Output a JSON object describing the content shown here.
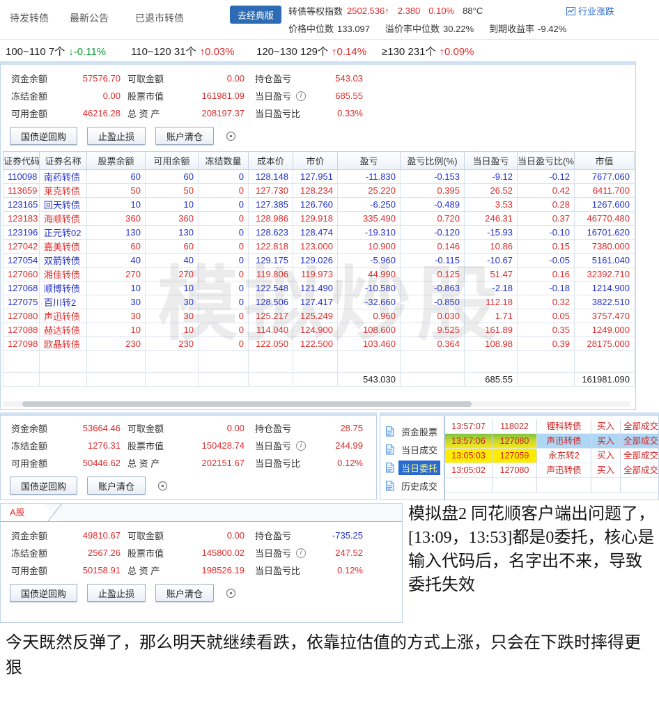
{
  "top_nav": {
    "tabs": [
      {
        "label": "待发转债"
      },
      {
        "label": "最新公告"
      },
      {
        "label": "已退市转债"
      }
    ],
    "classic_button": "去经典版",
    "index_label": "转债等权指数",
    "index_value": "2502.536",
    "index_arrow": "↑",
    "index_change": "2.380",
    "index_change_pct": "0.10%",
    "index_temp": "88°C",
    "industry_link": "行业涨跌",
    "stats_line2": [
      {
        "label": "价格中位数",
        "value": "133.097"
      },
      {
        "label": "溢价率中位数",
        "value": "30.22%"
      },
      {
        "label": "到期收益率",
        "value": "-9.42%"
      }
    ]
  },
  "range_stats": [
    {
      "label": "100~110 7个",
      "change": "↓-0.11%",
      "tone": "green"
    },
    {
      "label": "110~120 31个",
      "change": "↑0.03%",
      "tone": "red"
    },
    {
      "label": "120~130 129个",
      "change": "↑0.14%",
      "tone": "red"
    },
    {
      "label": "≥130 231个",
      "change": "↑0.09%",
      "tone": "red"
    }
  ],
  "account1": {
    "rows": [
      [
        {
          "label": "资金余额",
          "value": "57576.70",
          "tone": "red"
        },
        {
          "label": "可取金额",
          "value": "0.00",
          "tone": "red"
        },
        {
          "label": "持仓盈亏",
          "value": "543.03",
          "tone": "red"
        }
      ],
      [
        {
          "label": "冻结金额",
          "value": "0.00",
          "tone": "red"
        },
        {
          "label": "股票市值",
          "value": "161981.09",
          "tone": "red"
        },
        {
          "label": "当日盈亏",
          "info": true,
          "value": "685.55",
          "tone": "red"
        }
      ],
      [
        {
          "label": "可用金额",
          "value": "46216.28",
          "tone": "red"
        },
        {
          "label": "总 资 产",
          "value": "208197.37",
          "tone": "red"
        },
        {
          "label": "当日盈亏比",
          "value": "0.33%",
          "tone": "red"
        }
      ]
    ],
    "buttons": [
      "国债逆回购",
      "止盈止损",
      "账户清仓"
    ]
  },
  "positions": {
    "columns": [
      "证券代码",
      "证券名称",
      "股票余额",
      "可用余额",
      "冻结数量",
      "成本价",
      "市价",
      "盈亏",
      "盈亏比例(%)",
      "当日盈亏",
      "当日盈亏比(%)",
      "市值"
    ],
    "watermark": "模拟炒股",
    "rows": [
      {
        "code": "110098",
        "name": "南药转债",
        "bal": "60",
        "avail": "60",
        "frozen": "0",
        "cost": "128.148",
        "price": "127.951",
        "pl": "-11.830",
        "pl_pct": "-0.153",
        "day_pl": "-9.12",
        "day_pct": "-0.12",
        "mv": "7677.060",
        "base": "blue",
        "day": "blue"
      },
      {
        "code": "113659",
        "name": "莱克转债",
        "bal": "50",
        "avail": "50",
        "frozen": "0",
        "cost": "127.730",
        "price": "128.234",
        "pl": "25.220",
        "pl_pct": "0.395",
        "day_pl": "26.52",
        "day_pct": "0.42",
        "mv": "6411.700",
        "base": "red",
        "day": "red"
      },
      {
        "code": "123165",
        "name": "回天转债",
        "bal": "10",
        "avail": "10",
        "frozen": "0",
        "cost": "127.385",
        "price": "126.760",
        "pl": "-6.250",
        "pl_pct": "-0.489",
        "day_pl": "3.53",
        "day_pct": "0.28",
        "mv": "1267.600",
        "base": "blue",
        "day": "red"
      },
      {
        "code": "123183",
        "name": "海顺转债",
        "bal": "360",
        "avail": "360",
        "frozen": "0",
        "cost": "128.986",
        "price": "129.918",
        "pl": "335.490",
        "pl_pct": "0.720",
        "day_pl": "246.31",
        "day_pct": "0.37",
        "mv": "46770.480",
        "base": "red",
        "day": "red"
      },
      {
        "code": "123196",
        "name": "正元转02",
        "bal": "130",
        "avail": "130",
        "frozen": "0",
        "cost": "128.623",
        "price": "128.474",
        "pl": "-19.310",
        "pl_pct": "-0.120",
        "day_pl": "-15.93",
        "day_pct": "-0.10",
        "mv": "16701.620",
        "base": "blue",
        "day": "blue"
      },
      {
        "code": "127042",
        "name": "嘉美转债",
        "bal": "60",
        "avail": "60",
        "frozen": "0",
        "cost": "122.818",
        "price": "123.000",
        "pl": "10.900",
        "pl_pct": "0.146",
        "day_pl": "10.86",
        "day_pct": "0.15",
        "mv": "7380.000",
        "base": "red",
        "day": "red"
      },
      {
        "code": "127054",
        "name": "双箭转债",
        "bal": "40",
        "avail": "40",
        "frozen": "0",
        "cost": "129.175",
        "price": "129.026",
        "pl": "-5.960",
        "pl_pct": "-0.115",
        "day_pl": "-10.67",
        "day_pct": "-0.05",
        "mv": "5161.040",
        "base": "blue",
        "day": "blue"
      },
      {
        "code": "127060",
        "name": "湘佳转债",
        "bal": "270",
        "avail": "270",
        "frozen": "0",
        "cost": "119.806",
        "price": "119.973",
        "pl": "44.990",
        "pl_pct": "0.125",
        "day_pl": "51.47",
        "day_pct": "0.16",
        "mv": "32392.710",
        "base": "red",
        "day": "red"
      },
      {
        "code": "127068",
        "name": "顺博转债",
        "bal": "10",
        "avail": "10",
        "frozen": "0",
        "cost": "122.548",
        "price": "121.490",
        "pl": "-10.580",
        "pl_pct": "-0.863",
        "day_pl": "-2.18",
        "day_pct": "-0.18",
        "mv": "1214.900",
        "base": "blue",
        "day": "blue"
      },
      {
        "code": "127075",
        "name": "百川转2",
        "bal": "30",
        "avail": "30",
        "frozen": "0",
        "cost": "128.506",
        "price": "127.417",
        "pl": "-32.660",
        "pl_pct": "-0.850",
        "day_pl": "112.18",
        "day_pct": "0.32",
        "mv": "3822.510",
        "base": "blue",
        "day": "red"
      },
      {
        "code": "127080",
        "name": "声迅转债",
        "bal": "30",
        "avail": "30",
        "frozen": "0",
        "cost": "125.217",
        "price": "125.249",
        "pl": "0.960",
        "pl_pct": "0.030",
        "day_pl": "1.71",
        "day_pct": "0.05",
        "mv": "3757.470",
        "base": "red",
        "day": "red"
      },
      {
        "code": "127088",
        "name": "赫达转债",
        "bal": "10",
        "avail": "10",
        "frozen": "0",
        "cost": "114.040",
        "price": "124.900",
        "pl": "108.600",
        "pl_pct": "9.525",
        "day_pl": "161.89",
        "day_pct": "0.35",
        "mv": "1249.000",
        "base": "red",
        "day": "red"
      },
      {
        "code": "127098",
        "name": "欧晶转债",
        "bal": "230",
        "avail": "230",
        "frozen": "0",
        "cost": "122.050",
        "price": "122.500",
        "pl": "103.460",
        "pl_pct": "0.364",
        "day_pl": "108.98",
        "day_pct": "0.39",
        "mv": "28175.000",
        "base": "red",
        "day": "red"
      }
    ],
    "totals": {
      "pl": "543.030",
      "day_pl": "685.55",
      "mv": "161981.090"
    }
  },
  "account2": {
    "rows": [
      [
        {
          "label": "资金余额",
          "value": "53664.46",
          "tone": "red"
        },
        {
          "label": "可取金额",
          "value": "0.00",
          "tone": "red"
        },
        {
          "label": "持仓盈亏",
          "value": "28.75",
          "tone": "red"
        }
      ],
      [
        {
          "label": "冻结金额",
          "value": "1276.31",
          "tone": "red"
        },
        {
          "label": "股票市值",
          "value": "150428.74",
          "tone": "red"
        },
        {
          "label": "当日盈亏",
          "info": true,
          "value": "244.99",
          "tone": "red"
        }
      ],
      [
        {
          "label": "可用金额",
          "value": "50446.62",
          "tone": "red"
        },
        {
          "label": "总 资 产",
          "value": "202151.67",
          "tone": "red"
        },
        {
          "label": "当日盈亏比",
          "value": "0.12%",
          "tone": "red"
        }
      ]
    ],
    "buttons": [
      "国债逆回购",
      "账户清仓"
    ]
  },
  "orders_panel": {
    "menu": [
      {
        "label": "资金股票",
        "selected": false
      },
      {
        "label": "当日成交",
        "selected": false
      },
      {
        "label": "当日委托",
        "selected": true
      },
      {
        "label": "历史成交",
        "selected": false
      }
    ],
    "rows": [
      {
        "time": "13:57:07",
        "code": "118022",
        "name": "锂科转债",
        "side": "买入",
        "status": "全部成交",
        "selected": false,
        "hl": ""
      },
      {
        "time": "13:57:06",
        "code": "127080",
        "name": "声迅转债",
        "side": "买入",
        "status": "全部成交",
        "selected": true,
        "hl": "green"
      },
      {
        "time": "13:05:03",
        "code": "127059",
        "name": "永东转2",
        "side": "买入",
        "status": "全部成交",
        "selected": false,
        "hl": "yellow"
      },
      {
        "time": "13:05:02",
        "code": "127080",
        "name": "声迅转债",
        "side": "买入",
        "status": "全部成交",
        "selected": false,
        "hl": ""
      }
    ]
  },
  "a_share": {
    "tab": "A股",
    "rows": [
      [
        {
          "label": "资金余额",
          "value": "49810.67",
          "tone": "red"
        },
        {
          "label": "可取金额",
          "value": "0.00",
          "tone": "red"
        },
        {
          "label": "持仓盈亏",
          "value": "-735.25",
          "tone": "blue"
        }
      ],
      [
        {
          "label": "冻结金额",
          "value": "2567.26",
          "tone": "red"
        },
        {
          "label": "股票市值",
          "value": "145800.02",
          "tone": "red"
        },
        {
          "label": "当日盈亏",
          "info": true,
          "value": "247.52",
          "tone": "red"
        }
      ],
      [
        {
          "label": "可用金额",
          "value": "50158.91",
          "tone": "red"
        },
        {
          "label": "总 资 产",
          "value": "198526.19",
          "tone": "red"
        },
        {
          "label": "当日盈亏比",
          "value": "0.12%",
          "tone": "red"
        }
      ]
    ],
    "buttons": [
      "国债逆回购",
      "止盈止损",
      "账户清仓"
    ]
  },
  "notes": {
    "right": "模拟盘2 同花顺客户端出问题了，[13:09，13:53]都是0委托，核心是输入代码后，名字出不来，导致委托失效",
    "bottom": "今天既然反弹了，那么明天就继续看跌，依靠拉估值的方式上涨，只会在下跌时摔得更狠"
  },
  "colors": {
    "red": "#e02b2b",
    "blue": "#2330cc",
    "green": "#089f2f",
    "accent": "#2d6cb5",
    "menu_selected_bg": "#2a6ad0",
    "selected_row": "#aed6f5",
    "highlight_yellow": "#ffec00",
    "highlight_green": "#83c43f"
  }
}
